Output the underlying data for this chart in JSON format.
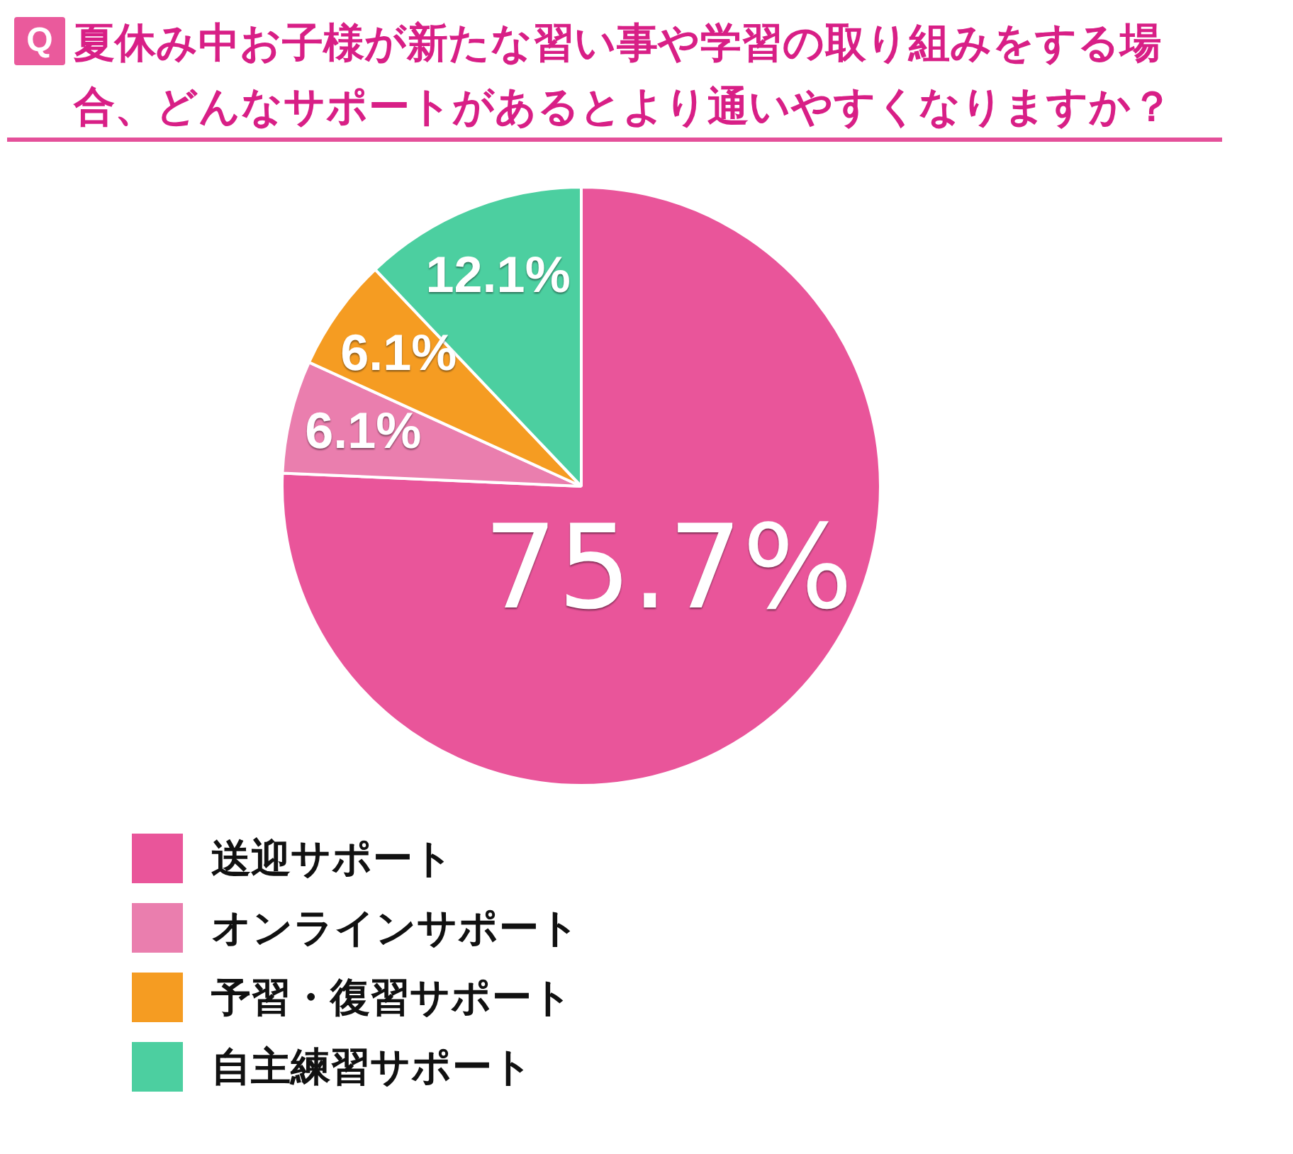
{
  "chart_data": {
    "type": "pie",
    "title": "夏休み中お子様が新たな習い事や学習の取り組みをする場合、どんなサポートがあるとより通いやすくなりますか？",
    "categories": [
      "送迎サポート",
      "オンラインサポート",
      "予習・復習サポート",
      "自主練習サポート"
    ],
    "values": [
      75.7,
      6.1,
      6.1,
      12.1
    ],
    "colors": [
      "#e9559a",
      "#ea7eae",
      "#f59c22",
      "#4ccfa0"
    ],
    "value_labels": [
      "75.7%",
      "6.1%",
      "6.1%",
      "12.1%"
    ],
    "legend": "bottom left",
    "annotations": [
      "Q"
    ]
  }
}
